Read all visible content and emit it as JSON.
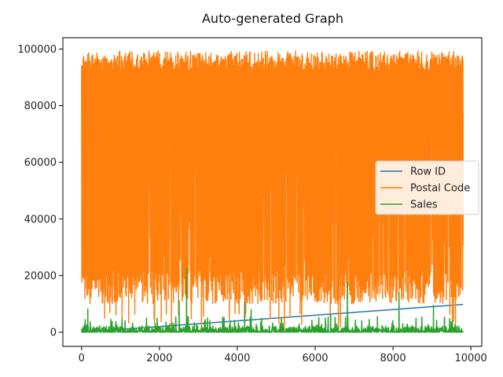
{
  "chart_data": {
    "type": "line",
    "title": "Auto-generated Graph",
    "xlabel": "",
    "ylabel": "",
    "xlim": [
      -480,
      10280
    ],
    "ylim": [
      -5000,
      104000
    ],
    "x_ticks": [
      0,
      2000,
      4000,
      6000,
      8000,
      10000
    ],
    "x_tick_labels": [
      "0",
      "2000",
      "4000",
      "6000",
      "8000",
      "10000"
    ],
    "y_ticks": [
      0,
      20000,
      40000,
      60000,
      80000,
      100000
    ],
    "y_tick_labels": [
      "0",
      "20000",
      "40000",
      "60000",
      "80000",
      "100000"
    ],
    "grid": false,
    "legend_position": "center-right",
    "x_range": [
      1,
      9800
    ],
    "series": [
      {
        "name": "Row ID",
        "color": "#1f77b4",
        "x": [
          1,
          9800
        ],
        "values": [
          1,
          9800
        ]
      },
      {
        "name": "Postal Code",
        "color": "#ff7f0e",
        "min": 1040,
        "max": 99301,
        "typical_low": 10000,
        "typical_high": 98000,
        "x": [
          1,
          9800
        ]
      },
      {
        "name": "Sales",
        "color": "#2ca02c",
        "min": 0.44,
        "max": 22638,
        "peaks": [
          {
            "x": 2697,
            "y": 22638
          },
          {
            "x": 6826,
            "y": 17500
          },
          {
            "x": 8153,
            "y": 13999
          },
          {
            "x": 4190,
            "y": 10500
          },
          {
            "x": 2505,
            "y": 11200
          },
          {
            "x": 9040,
            "y": 9500
          },
          {
            "x": 160,
            "y": 8200
          },
          {
            "x": 4355,
            "y": 8000
          },
          {
            "x": 6400,
            "y": 6500
          },
          {
            "x": 7600,
            "y": 5500
          }
        ],
        "x": [
          1,
          9800
        ]
      }
    ]
  }
}
